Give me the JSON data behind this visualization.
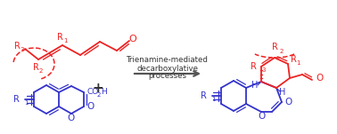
{
  "bg_color": "#ffffff",
  "red_color": "#ee2222",
  "blue_color": "#3333cc",
  "black_color": "#333333",
  "arrow_color": "#555555",
  "arrow_text_lines": [
    "Trienamine-mediated",
    "decarboxylative",
    "processes"
  ],
  "arrow_text_fontsize": 6.2,
  "figsize": [
    3.78,
    1.51
  ],
  "dpi": 100
}
